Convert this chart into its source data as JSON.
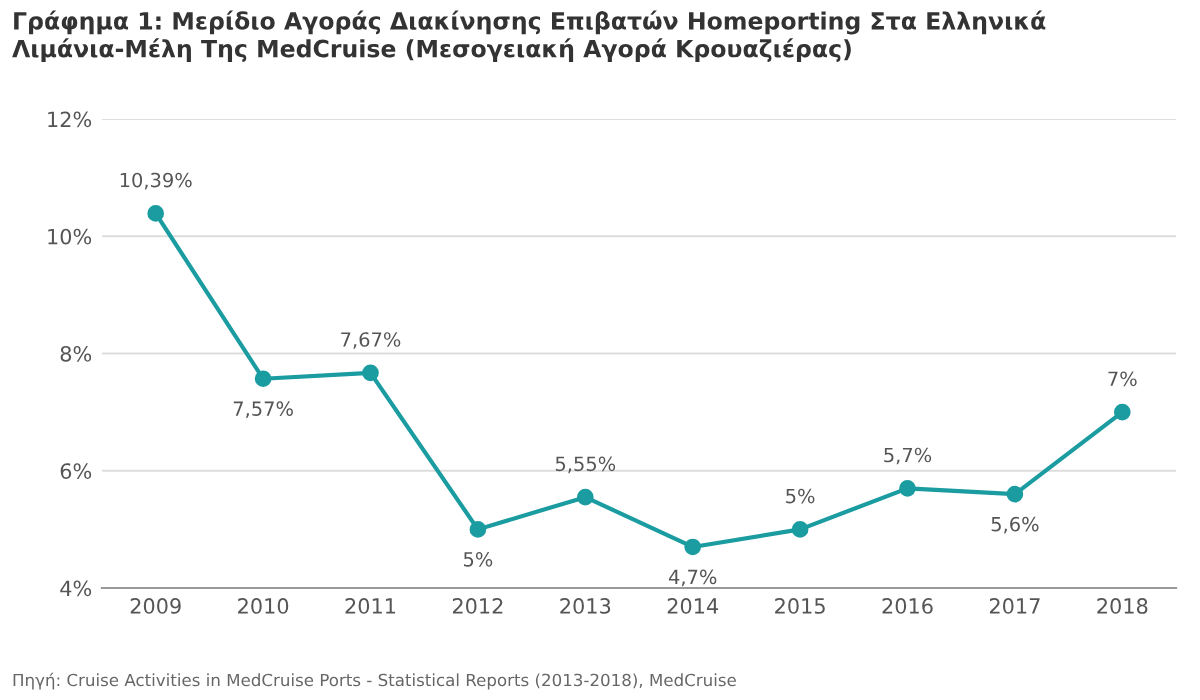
{
  "chart_data": {
    "type": "line",
    "title": "Γράφημα 1: Μερίδιο Αγοράς Διακίνησης Επιβατών Homeporting Στα Ελληνικά Λιμάνια-Μέλη Της MedCruise (Μεσογειακή Αγορά Κρουαζιέρας)",
    "categories": [
      "2009",
      "2010",
      "2011",
      "2012",
      "2013",
      "2014",
      "2015",
      "2016",
      "2017",
      "2018"
    ],
    "series": [
      {
        "color": "#1a9ca0",
        "values": [
          10.39,
          7.57,
          7.67,
          5,
          5.55,
          4.7,
          5,
          5.7,
          5.6,
          7
        ],
        "value_labels": [
          "10,39%",
          "7,57%",
          "7,67%",
          "5%",
          "5,55%",
          "4,7%",
          "5%",
          "5,7%",
          "5,6%",
          "7%"
        ]
      }
    ],
    "ylim": [
      4,
      12
    ],
    "yticks": [
      {
        "value": 4,
        "label": "4%"
      },
      {
        "value": 6,
        "label": "6%"
      },
      {
        "value": 8,
        "label": "8%"
      },
      {
        "value": 10,
        "label": "10%"
      },
      {
        "value": 12,
        "label": "12%"
      }
    ],
    "grid": "y",
    "marker": "circle",
    "line_style": "solid",
    "annotations": [
      "Πηγή: Cruise Activities in MedCruise Ports - Statistical Reports (2013-2018), MedCruise"
    ]
  }
}
